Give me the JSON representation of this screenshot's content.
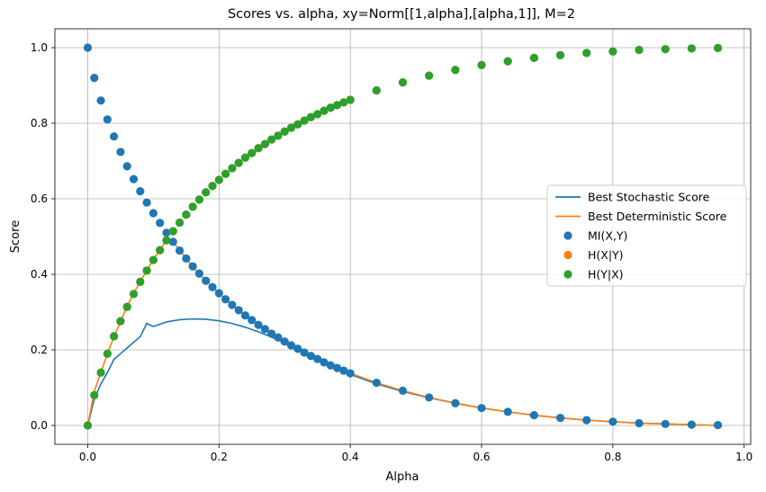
{
  "chart_data": {
    "type": "scatter",
    "title": "Scores vs. alpha, xy=Norm[[1,alpha],[alpha,1]], M=2",
    "xlabel": "Alpha",
    "ylabel": "Score",
    "xlim": [
      -0.05,
      1.01
    ],
    "ylim": [
      -0.05,
      1.05
    ],
    "xticks": [
      0.0,
      0.2,
      0.4,
      0.6,
      0.8,
      1.0
    ],
    "xtick_labels": [
      "0.0",
      "0.2",
      "0.4",
      "0.6",
      "0.8",
      "1.0"
    ],
    "yticks": [
      0.0,
      0.2,
      0.4,
      0.6,
      0.8,
      1.0
    ],
    "ytick_labels": [
      "0.0",
      "0.2",
      "0.4",
      "0.6",
      "0.8",
      "1.0"
    ],
    "grid": true,
    "legend_position": "center-right",
    "series": [
      {
        "name": "Best Stochastic Score",
        "kind": "line",
        "color": "#1f77b4",
        "x": [
          0.0,
          0.01,
          0.02,
          0.03,
          0.04,
          0.05,
          0.06,
          0.07,
          0.08,
          0.09,
          0.1,
          0.12,
          0.14,
          0.16,
          0.18,
          0.2,
          0.22,
          0.24,
          0.26,
          0.28,
          0.3,
          0.32,
          0.34,
          0.36,
          0.38,
          0.4,
          0.44,
          0.48,
          0.52,
          0.56,
          0.6,
          0.64,
          0.68,
          0.72,
          0.76,
          0.8,
          0.84,
          0.88,
          0.92,
          0.96
        ],
        "y": [
          0.0,
          0.07,
          0.11,
          0.14,
          0.175,
          0.19,
          0.205,
          0.22,
          0.235,
          0.27,
          0.262,
          0.274,
          0.28,
          0.282,
          0.281,
          0.277,
          0.27,
          0.26,
          0.248,
          0.234,
          0.218,
          0.201,
          0.183,
          0.166,
          0.15,
          0.135,
          0.11,
          0.09,
          0.073,
          0.059,
          0.046,
          0.036,
          0.027,
          0.02,
          0.014,
          0.01,
          0.006,
          0.004,
          0.002,
          0.0
        ]
      },
      {
        "name": "Best Deterministic Score",
        "kind": "line",
        "color": "#ff7f0e",
        "x": [
          0.0,
          0.01,
          0.02,
          0.03,
          0.04,
          0.05,
          0.06,
          0.07,
          0.08,
          0.09,
          0.1,
          0.11,
          0.12,
          0.13,
          0.14,
          0.15,
          0.16,
          0.17,
          0.18,
          0.19,
          0.2,
          0.22,
          0.24,
          0.26,
          0.28,
          0.3,
          0.32,
          0.34,
          0.36,
          0.38,
          0.4,
          0.44,
          0.48,
          0.52,
          0.56,
          0.6,
          0.64,
          0.68,
          0.72,
          0.76,
          0.8,
          0.84,
          0.88,
          0.92,
          0.96
        ],
        "y": [
          0.0,
          0.09,
          0.14,
          0.19,
          0.235,
          0.275,
          0.315,
          0.35,
          0.38,
          0.41,
          0.44,
          0.465,
          0.49,
          0.485,
          0.465,
          0.443,
          0.42,
          0.401,
          0.383,
          0.366,
          0.35,
          0.319,
          0.292,
          0.267,
          0.243,
          0.222,
          0.202,
          0.184,
          0.167,
          0.152,
          0.138,
          0.113,
          0.092,
          0.074,
          0.059,
          0.046,
          0.036,
          0.027,
          0.02,
          0.014,
          0.01,
          0.006,
          0.004,
          0.002,
          0.0
        ]
      },
      {
        "name": "MI(X,Y)",
        "kind": "scatter",
        "color": "#1f77b4",
        "x": [
          0.0,
          0.01,
          0.02,
          0.03,
          0.04,
          0.05,
          0.06,
          0.07,
          0.08,
          0.09,
          0.1,
          0.11,
          0.12,
          0.13,
          0.14,
          0.15,
          0.16,
          0.17,
          0.18,
          0.19,
          0.2,
          0.21,
          0.22,
          0.23,
          0.24,
          0.25,
          0.26,
          0.27,
          0.28,
          0.29,
          0.3,
          0.31,
          0.32,
          0.33,
          0.34,
          0.35,
          0.36,
          0.37,
          0.38,
          0.39,
          0.4,
          0.44,
          0.48,
          0.52,
          0.56,
          0.6,
          0.64,
          0.68,
          0.72,
          0.76,
          0.8,
          0.84,
          0.88,
          0.92,
          0.96
        ],
        "y": [
          1.0,
          0.92,
          0.86,
          0.81,
          0.765,
          0.724,
          0.686,
          0.652,
          0.62,
          0.59,
          0.562,
          0.536,
          0.51,
          0.486,
          0.463,
          0.442,
          0.421,
          0.402,
          0.383,
          0.366,
          0.35,
          0.334,
          0.319,
          0.305,
          0.291,
          0.279,
          0.266,
          0.255,
          0.243,
          0.233,
          0.222,
          0.212,
          0.203,
          0.193,
          0.184,
          0.176,
          0.167,
          0.159,
          0.152,
          0.145,
          0.138,
          0.113,
          0.092,
          0.074,
          0.059,
          0.046,
          0.036,
          0.027,
          0.02,
          0.014,
          0.01,
          0.006,
          0.004,
          0.002,
          0.001
        ]
      },
      {
        "name": "H(X|Y)",
        "kind": "scatter",
        "color": "#ff7f0e",
        "x": [
          0.0,
          0.01,
          0.02,
          0.03,
          0.04,
          0.05,
          0.06,
          0.07,
          0.08,
          0.09,
          0.1,
          0.11,
          0.12,
          0.13,
          0.14,
          0.15,
          0.16,
          0.17,
          0.18,
          0.19,
          0.2,
          0.21,
          0.22,
          0.23,
          0.24,
          0.25,
          0.26,
          0.27,
          0.28,
          0.29,
          0.3,
          0.31,
          0.32,
          0.33,
          0.34,
          0.35,
          0.36,
          0.37,
          0.38,
          0.39,
          0.4,
          0.44,
          0.48,
          0.52,
          0.56,
          0.6,
          0.64,
          0.68,
          0.72,
          0.76,
          0.8,
          0.84,
          0.88,
          0.92,
          0.96
        ],
        "y": [
          0.0,
          0.08,
          0.14,
          0.19,
          0.236,
          0.276,
          0.314,
          0.348,
          0.38,
          0.41,
          0.438,
          0.464,
          0.49,
          0.514,
          0.537,
          0.558,
          0.579,
          0.598,
          0.617,
          0.634,
          0.65,
          0.666,
          0.681,
          0.695,
          0.709,
          0.721,
          0.734,
          0.745,
          0.757,
          0.767,
          0.778,
          0.788,
          0.797,
          0.807,
          0.816,
          0.824,
          0.833,
          0.841,
          0.848,
          0.855,
          0.862,
          0.887,
          0.908,
          0.926,
          0.941,
          0.954,
          0.964,
          0.973,
          0.98,
          0.986,
          0.99,
          0.994,
          0.996,
          0.998,
          0.999
        ]
      },
      {
        "name": "H(Y|X)",
        "kind": "scatter",
        "color": "#2ca02c",
        "x": [
          0.0,
          0.01,
          0.02,
          0.03,
          0.04,
          0.05,
          0.06,
          0.07,
          0.08,
          0.09,
          0.1,
          0.11,
          0.12,
          0.13,
          0.14,
          0.15,
          0.16,
          0.17,
          0.18,
          0.19,
          0.2,
          0.21,
          0.22,
          0.23,
          0.24,
          0.25,
          0.26,
          0.27,
          0.28,
          0.29,
          0.3,
          0.31,
          0.32,
          0.33,
          0.34,
          0.35,
          0.36,
          0.37,
          0.38,
          0.39,
          0.4,
          0.44,
          0.48,
          0.52,
          0.56,
          0.6,
          0.64,
          0.68,
          0.72,
          0.76,
          0.8,
          0.84,
          0.88,
          0.92,
          0.96
        ],
        "y": [
          0.0,
          0.08,
          0.14,
          0.19,
          0.236,
          0.276,
          0.314,
          0.348,
          0.38,
          0.41,
          0.438,
          0.464,
          0.49,
          0.514,
          0.537,
          0.558,
          0.579,
          0.598,
          0.617,
          0.634,
          0.65,
          0.666,
          0.681,
          0.695,
          0.709,
          0.721,
          0.734,
          0.745,
          0.757,
          0.767,
          0.778,
          0.788,
          0.797,
          0.807,
          0.816,
          0.824,
          0.833,
          0.841,
          0.848,
          0.855,
          0.862,
          0.887,
          0.908,
          0.926,
          0.941,
          0.954,
          0.964,
          0.973,
          0.98,
          0.986,
          0.99,
          0.994,
          0.996,
          0.998,
          0.999
        ]
      }
    ]
  }
}
